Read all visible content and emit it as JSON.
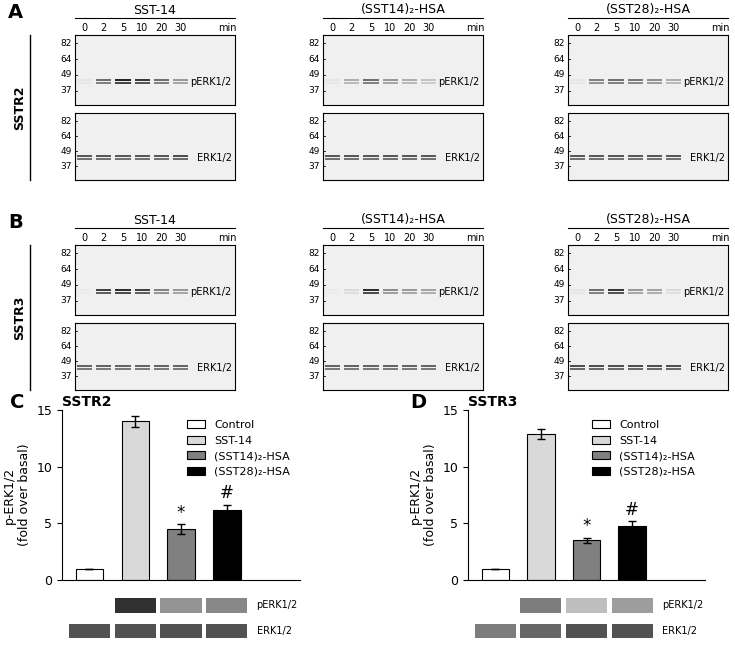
{
  "blots": {
    "times": [
      0,
      2,
      5,
      10,
      20,
      30
    ],
    "time_unit": "min",
    "markers": [
      82,
      64,
      49,
      37
    ],
    "panels": [
      {
        "panel_label": "A",
        "receptor": "SSTR2",
        "columns": [
          {
            "title": "SST-14",
            "bands": [
              {
                "label": "pERK1/2",
                "intensity": [
                  0.05,
                  0.6,
                  0.95,
                  0.85,
                  0.6,
                  0.4
                ]
              },
              {
                "label": "ERK1/2",
                "intensity": [
                  0.7,
                  0.7,
                  0.7,
                  0.7,
                  0.7,
                  0.75
                ]
              }
            ]
          },
          {
            "title": "(SST14)₂-HSA",
            "bands": [
              {
                "label": "pERK1/2",
                "intensity": [
                  0.05,
                  0.3,
                  0.6,
                  0.4,
                  0.3,
                  0.2
                ]
              },
              {
                "label": "ERK1/2",
                "intensity": [
                  0.7,
                  0.7,
                  0.7,
                  0.7,
                  0.7,
                  0.7
                ]
              }
            ]
          },
          {
            "title": "(SST28)₂-HSA",
            "bands": [
              {
                "label": "pERK1/2",
                "intensity": [
                  0.05,
                  0.5,
                  0.6,
                  0.55,
                  0.45,
                  0.3
                ]
              },
              {
                "label": "ERK1/2",
                "intensity": [
                  0.7,
                  0.7,
                  0.7,
                  0.7,
                  0.7,
                  0.7
                ]
              }
            ]
          }
        ]
      },
      {
        "panel_label": "B",
        "receptor": "SSTR3",
        "columns": [
          {
            "title": "SST-14",
            "bands": [
              {
                "label": "pERK1/2",
                "intensity": [
                  0.02,
                  0.8,
                  0.9,
                  0.8,
                  0.5,
                  0.4
                ]
              },
              {
                "label": "ERK1/2",
                "intensity": [
                  0.65,
                  0.65,
                  0.65,
                  0.65,
                  0.65,
                  0.65
                ]
              }
            ]
          },
          {
            "title": "(SST14)₂-HSA",
            "bands": [
              {
                "label": "pERK1/2",
                "intensity": [
                  0.02,
                  0.1,
                  0.9,
                  0.45,
                  0.4,
                  0.35
                ]
              },
              {
                "label": "ERK1/2",
                "intensity": [
                  0.65,
                  0.65,
                  0.65,
                  0.65,
                  0.65,
                  0.65
                ]
              }
            ]
          },
          {
            "title": "(SST28)₂-HSA",
            "bands": [
              {
                "label": "pERK1/2",
                "intensity": [
                  0.05,
                  0.6,
                  0.85,
                  0.4,
                  0.35,
                  0.1
                ]
              },
              {
                "label": "ERK1/2",
                "intensity": [
                  0.75,
                  0.75,
                  0.75,
                  0.75,
                  0.75,
                  0.75
                ]
              }
            ]
          }
        ]
      }
    ]
  },
  "chart_data": [
    {
      "type": "bar",
      "panel_label": "C",
      "title": "SSTR2",
      "ylabel": "p-ERK1/2\n(fold over basal)",
      "categories": [
        "Control",
        "SST-14",
        "(SST14)₂-HSA",
        "(SST28)₂-HSA"
      ],
      "values": [
        1,
        14,
        4.5,
        6.2
      ],
      "errors": [
        0,
        0.5,
        0.45,
        0.45
      ],
      "colors": [
        "#ffffff",
        "#d9d9d9",
        "#808080",
        "#000000"
      ],
      "ylim": [
        0,
        15
      ],
      "yticks": [
        0,
        5,
        10,
        15
      ],
      "grid": false,
      "legend": "upper right",
      "tick_labels": "y",
      "annotations": [
        {
          "category": "(SST14)₂-HSA",
          "text": "*"
        },
        {
          "category": "(SST28)₂-HSA",
          "text": "#"
        }
      ],
      "inset_bands": [
        {
          "label": "pERK1/2",
          "intensity": [
            0.0,
            0.95,
            0.5,
            0.55
          ]
        },
        {
          "label": "ERK1/2",
          "intensity": [
            0.8,
            0.8,
            0.8,
            0.8
          ]
        }
      ]
    },
    {
      "type": "bar",
      "panel_label": "D",
      "title": "SSTR3",
      "ylabel": "p-ERK1/2\n(fold over basal)",
      "categories": [
        "Control",
        "SST-14",
        "(SST14)₂-HSA",
        "(SST28)₂-HSA"
      ],
      "values": [
        1,
        12.9,
        3.5,
        4.8
      ],
      "errors": [
        0,
        0.45,
        0.25,
        0.4
      ],
      "colors": [
        "#ffffff",
        "#d9d9d9",
        "#808080",
        "#000000"
      ],
      "ylim": [
        0,
        15
      ],
      "yticks": [
        0,
        5,
        10,
        15
      ],
      "grid": false,
      "legend": "upper right",
      "tick_labels": "y",
      "annotations": [
        {
          "category": "(SST14)₂-HSA",
          "text": "*"
        },
        {
          "category": "(SST28)₂-HSA",
          "text": "#"
        }
      ],
      "inset_bands": [
        {
          "label": "pERK1/2",
          "intensity": [
            0.0,
            0.6,
            0.3,
            0.45
          ]
        },
        {
          "label": "ERK1/2",
          "intensity": [
            0.6,
            0.7,
            0.8,
            0.8
          ]
        }
      ]
    }
  ]
}
